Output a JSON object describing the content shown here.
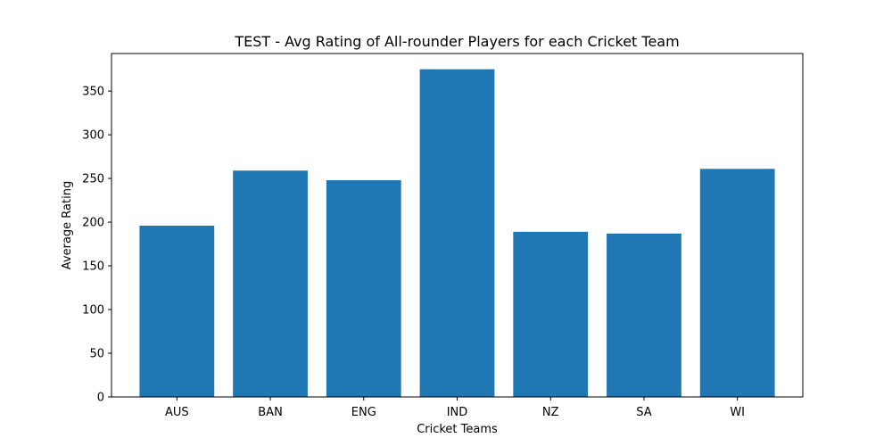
{
  "chart_data": {
    "type": "bar",
    "title": "TEST - Avg Rating of All-rounder Players for each Cricket Team",
    "xlabel": "Cricket Teams",
    "ylabel": "Average Rating",
    "categories": [
      "AUS",
      "BAN",
      "ENG",
      "IND",
      "NZ",
      "SA",
      "WI"
    ],
    "values": [
      196,
      259,
      248,
      375,
      189,
      187,
      261
    ],
    "ylim": [
      0,
      393
    ],
    "yticks": [
      0,
      50,
      100,
      150,
      200,
      250,
      300,
      350
    ],
    "grid": false,
    "bar_color": "#1f77b4"
  }
}
